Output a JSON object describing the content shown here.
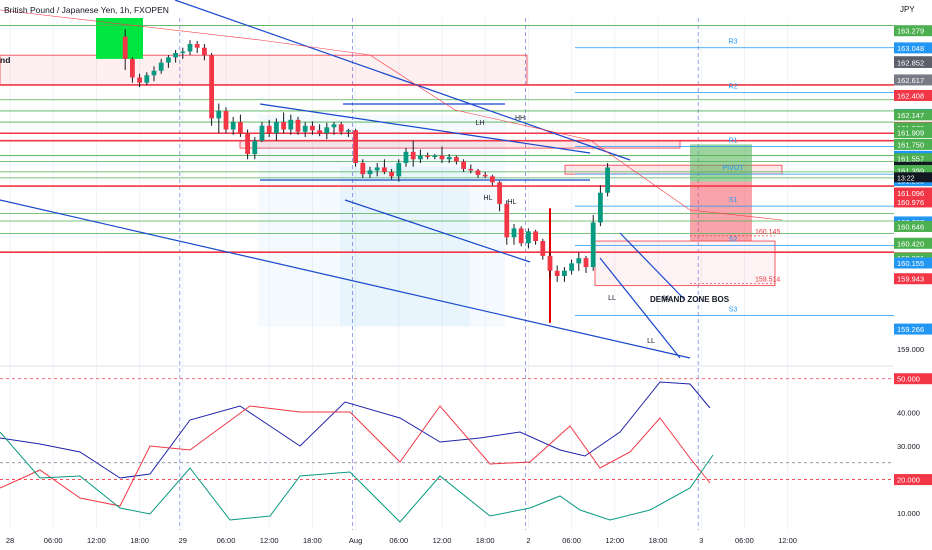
{
  "header": {
    "title": "British Pound / Japanese Yen, 1h, FXOPEN",
    "left_edge_text": "nd",
    "currency": "JPY",
    "countdown": "13:22"
  },
  "chart_data": {
    "type": "candlestick",
    "symbol": "GBPJPY",
    "timeframe": "1h",
    "price_axis": {
      "min": 158.85,
      "max": 163.45,
      "ticks": [
        {
          "value": 163.279,
          "text": "163.279",
          "bg": "#4caf50"
        },
        {
          "value": 163.048,
          "text": "163.048",
          "bg": "#2196f3"
        },
        {
          "value": 162.864,
          "text": "162.864",
          "bg": "#787b86"
        },
        {
          "value": 162.852,
          "text": "162.852",
          "bg": "#5d606b"
        },
        {
          "value": 162.617,
          "text": "162.617",
          "bg": "#787b86"
        },
        {
          "value": 162.408,
          "text": "162.408",
          "bg": "#f23645"
        },
        {
          "value": 162.153,
          "text": "162.153",
          "bg": "#2196f3"
        },
        {
          "value": 162.147,
          "text": "162.147",
          "bg": "#4caf50"
        },
        {
          "value": 161.979,
          "text": "161.979",
          "bg": "#f23645"
        },
        {
          "value": 161.972,
          "text": "161.972",
          "bg": "#4caf50"
        },
        {
          "value": 161.909,
          "text": "161.909",
          "bg": "#4caf50"
        },
        {
          "value": 161.75,
          "text": "161.750",
          "bg": "#4caf50"
        },
        {
          "value": 161.59,
          "text": "161.590",
          "bg": "#2196f3"
        },
        {
          "value": 161.557,
          "text": "161.557",
          "bg": "#4caf50"
        },
        {
          "value": 161.442,
          "text": "161.442",
          "bg": "#131722"
        },
        {
          "value": 161.399,
          "text": "161.399",
          "bg": "#4caf50"
        },
        {
          "value": 161.263,
          "text": "161.263",
          "bg": "#2196f3"
        },
        {
          "value": 161.096,
          "text": "161.096",
          "bg": "#f23645"
        },
        {
          "value": 160.976,
          "text": "160.976",
          "bg": "#f23645"
        },
        {
          "value": 160.707,
          "text": "160.707",
          "bg": "#2196f3"
        },
        {
          "value": 160.646,
          "text": "160.646",
          "bg": "#4caf50"
        },
        {
          "value": 160.42,
          "text": "160.420",
          "bg": "#4caf50"
        },
        {
          "value": 160.225,
          "text": "160.225",
          "bg": "#f23645"
        },
        {
          "value": 160.221,
          "text": "160.221",
          "bg": "#4caf50"
        },
        {
          "value": 160.155,
          "text": "160.155",
          "bg": "#2196f3"
        },
        {
          "value": 159.943,
          "text": "159.943",
          "bg": "#f23645"
        },
        {
          "value": 159.266,
          "text": "159.266",
          "bg": "#2196f3"
        },
        {
          "value": 159.0,
          "text": "159.000",
          "bg": ""
        }
      ]
    },
    "time_axis": [
      {
        "text": "28",
        "index": 1
      },
      {
        "text": "06:00",
        "index": 7
      },
      {
        "text": "12:00",
        "index": 13
      },
      {
        "text": "18:00",
        "index": 19
      },
      {
        "text": "29",
        "index": 25
      },
      {
        "text": "06:00",
        "index": 31
      },
      {
        "text": "12:00",
        "index": 37
      },
      {
        "text": "18:00",
        "index": 43
      },
      {
        "text": "Aug",
        "index": 49
      },
      {
        "text": "06:00",
        "index": 55
      },
      {
        "text": "12:00",
        "index": 61
      },
      {
        "text": "18:00",
        "index": 67
      },
      {
        "text": "2",
        "index": 73
      },
      {
        "text": "06:00",
        "index": 79
      },
      {
        "text": "12:00",
        "index": 85
      },
      {
        "text": "18:00",
        "index": 91
      },
      {
        "text": "3",
        "index": 97
      },
      {
        "text": "06:00",
        "index": 103
      },
      {
        "text": "12:00",
        "index": 109
      }
    ],
    "candles": [
      [
        17,
        163.2,
        163.3,
        162.75,
        162.9
      ],
      [
        18,
        162.9,
        162.92,
        162.58,
        162.65
      ],
      [
        19,
        162.65,
        162.7,
        162.52,
        162.58
      ],
      [
        20,
        162.58,
        162.72,
        162.55,
        162.68
      ],
      [
        21,
        162.68,
        162.8,
        162.6,
        162.74
      ],
      [
        22,
        162.74,
        162.9,
        162.7,
        162.85
      ],
      [
        23,
        162.85,
        162.95,
        162.78,
        162.92
      ],
      [
        24,
        162.92,
        163.02,
        162.85,
        162.98
      ],
      [
        25,
        162.98,
        163.05,
        162.9,
        163.0
      ],
      [
        26,
        163.0,
        163.15,
        162.95,
        163.1
      ],
      [
        27,
        163.1,
        163.14,
        162.98,
        163.05
      ],
      [
        28,
        163.05,
        163.1,
        162.88,
        162.95
      ],
      [
        29,
        162.95,
        162.98,
        162.0,
        162.1
      ],
      [
        30,
        162.1,
        162.3,
        161.9,
        162.2
      ],
      [
        31,
        162.2,
        162.25,
        161.9,
        161.95
      ],
      [
        32,
        161.95,
        162.12,
        161.88,
        162.05
      ],
      [
        33,
        162.05,
        162.15,
        161.85,
        161.9
      ],
      [
        34,
        161.9,
        161.95,
        161.55,
        161.62
      ],
      [
        35,
        161.62,
        161.85,
        161.55,
        161.8
      ],
      [
        36,
        161.8,
        162.05,
        161.78,
        162.0
      ],
      [
        37,
        162.0,
        162.08,
        161.85,
        161.9
      ],
      [
        38,
        161.9,
        162.1,
        161.8,
        162.05
      ],
      [
        39,
        162.05,
        162.18,
        161.9,
        161.95
      ],
      [
        40,
        161.95,
        162.15,
        161.88,
        162.08
      ],
      [
        41,
        162.08,
        162.12,
        161.88,
        161.92
      ],
      [
        42,
        161.92,
        162.05,
        161.85,
        162.0
      ],
      [
        43,
        162.0,
        162.06,
        161.88,
        161.94
      ],
      [
        44,
        161.94,
        162.02,
        161.86,
        161.9
      ],
      [
        45,
        161.9,
        162.04,
        161.82,
        161.98
      ],
      [
        46,
        161.98,
        162.05,
        161.88,
        162.02
      ],
      [
        47,
        162.02,
        162.05,
        161.88,
        161.92
      ],
      [
        48,
        161.92,
        161.96,
        161.85,
        161.94
      ],
      [
        49,
        161.94,
        161.96,
        161.45,
        161.5
      ],
      [
        50,
        161.5,
        161.55,
        161.3,
        161.35
      ],
      [
        51,
        161.35,
        161.45,
        161.3,
        161.4
      ],
      [
        52,
        161.4,
        161.5,
        161.32,
        161.44
      ],
      [
        53,
        161.44,
        161.55,
        161.35,
        161.38
      ],
      [
        54,
        161.38,
        161.42,
        161.28,
        161.32
      ],
      [
        55,
        161.32,
        161.55,
        161.25,
        161.5
      ],
      [
        56,
        161.5,
        161.7,
        161.45,
        161.65
      ],
      [
        57,
        161.65,
        161.8,
        161.45,
        161.55
      ],
      [
        58,
        161.55,
        161.68,
        161.5,
        161.6
      ],
      [
        59,
        161.6,
        161.64,
        161.55,
        161.58
      ],
      [
        60,
        161.58,
        161.62,
        161.55,
        161.6
      ],
      [
        61,
        161.6,
        161.72,
        161.5,
        161.55
      ],
      [
        62,
        161.55,
        161.62,
        161.5,
        161.58
      ],
      [
        63,
        161.58,
        161.6,
        161.48,
        161.52
      ],
      [
        64,
        161.52,
        161.55,
        161.38,
        161.42
      ],
      [
        65,
        161.42,
        161.48,
        161.36,
        161.4
      ],
      [
        66,
        161.4,
        161.42,
        161.3,
        161.34
      ],
      [
        67,
        161.34,
        161.38,
        161.3,
        161.32
      ],
      [
        68,
        161.32,
        161.34,
        161.2,
        161.24
      ],
      [
        69,
        161.24,
        161.26,
        160.85,
        160.95
      ],
      [
        70,
        160.95,
        161.0,
        160.4,
        160.5
      ],
      [
        71,
        160.5,
        160.68,
        160.4,
        160.62
      ],
      [
        72,
        160.62,
        160.65,
        160.38,
        160.42
      ],
      [
        73,
        160.42,
        160.62,
        160.35,
        160.58
      ],
      [
        74,
        160.58,
        160.6,
        160.4,
        160.45
      ],
      [
        75,
        160.45,
        160.48,
        160.2,
        160.25
      ],
      [
        76,
        160.25,
        160.3,
        159.95,
        160.05
      ],
      [
        77,
        160.05,
        160.12,
        159.9,
        159.98
      ],
      [
        78,
        159.98,
        160.1,
        159.9,
        160.05
      ],
      [
        79,
        160.05,
        160.2,
        160.0,
        160.15
      ],
      [
        80,
        160.15,
        160.3,
        160.05,
        160.22
      ],
      [
        81,
        160.22,
        160.25,
        160.02,
        160.1
      ],
      [
        82,
        160.1,
        160.8,
        160.05,
        160.7
      ],
      [
        83,
        160.7,
        161.2,
        160.65,
        161.1
      ],
      [
        84,
        161.1,
        161.5,
        161.05,
        161.44
      ]
    ],
    "rsi_panel": {
      "ymin": 5,
      "ymax": 52,
      "ticks": [
        {
          "value": 50,
          "text": "50.000",
          "bg": "#f23645",
          "color": "#fff"
        },
        {
          "value": 40,
          "text": "40.000",
          "bg": "",
          "color": "#131722"
        },
        {
          "value": 30,
          "text": "30.000",
          "bg": "",
          "color": "#131722"
        },
        {
          "value": 20,
          "text": "20.000",
          "bg": "#f23645",
          "color": "#fff"
        },
        {
          "value": 10,
          "text": "10.000",
          "bg": "",
          "color": "#131722"
        }
      ]
    },
    "annotations": [
      {
        "text": "R3",
        "kind": "pivot"
      },
      {
        "text": "R2",
        "kind": "pivot"
      },
      {
        "text": "R1",
        "kind": "pivot"
      },
      {
        "text": "PIVOT",
        "kind": "pivot"
      },
      {
        "text": "S1",
        "kind": "pivot"
      },
      {
        "text": "S2",
        "kind": "pivot"
      },
      {
        "text": "S3",
        "kind": "pivot"
      },
      {
        "text": "160.145",
        "kind": "level"
      },
      {
        "text": "159.514",
        "kind": "level"
      },
      {
        "text": "DEMAND ZONE BOS",
        "kind": "label"
      },
      {
        "text": "LH",
        "kind": "swing"
      },
      {
        "text": "HH",
        "kind": "swing"
      },
      {
        "text": "HL",
        "kind": "swing"
      },
      {
        "text": "HL",
        "kind": "swing"
      },
      {
        "text": "LL",
        "kind": "swing"
      },
      {
        "text": "LL",
        "kind": "swing"
      },
      {
        "text": "LL",
        "kind": "swing"
      }
    ],
    "colors": {
      "up": "#089981",
      "down": "#f23645",
      "wick": "#131722",
      "grid": "#f0f3fa",
      "channel": "#1848cc",
      "resistance": "#f23645",
      "support": "#4caf50",
      "pivot": "#2196f3"
    }
  }
}
